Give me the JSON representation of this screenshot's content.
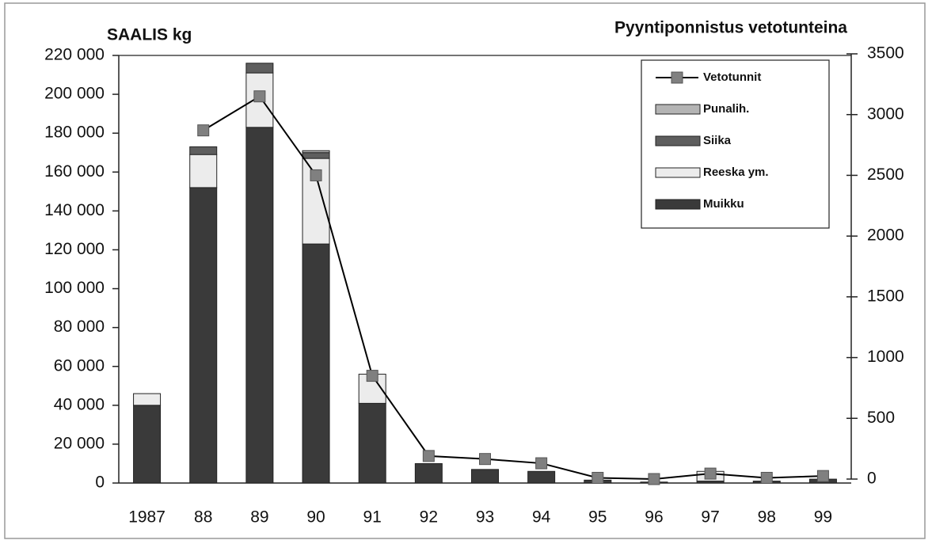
{
  "chart_data": {
    "type": "bar",
    "y_label": "SAALIS kg",
    "y2_label": "Pyyntiponnistus vetotunteina",
    "categories": [
      "1987",
      "88",
      "89",
      "90",
      "91",
      "92",
      "93",
      "94",
      "95",
      "96",
      "97",
      "98",
      "99"
    ],
    "stacked": true,
    "series": [
      {
        "name": "Muikku",
        "color": "#3a3a3a",
        "values": [
          40000,
          152000,
          183000,
          123000,
          41000,
          10000,
          7000,
          6000,
          1500,
          500,
          1000,
          1000,
          2000
        ]
      },
      {
        "name": "Reeska ym.",
        "color": "#ececec",
        "values": [
          6000,
          17000,
          28000,
          44000,
          15000,
          0,
          0,
          0,
          0,
          0,
          5000,
          0,
          0
        ]
      },
      {
        "name": "Siika",
        "color": "#5e5e5e",
        "values": [
          0,
          4000,
          5000,
          3000,
          0,
          0,
          0,
          0,
          0,
          0,
          0,
          0,
          0
        ]
      },
      {
        "name": "Punalih.",
        "color": "#b4b4b4",
        "values": [
          0,
          0,
          0,
          1000,
          0,
          0,
          0,
          0,
          0,
          0,
          0,
          0,
          0
        ]
      },
      {
        "name": "Vetotunnit",
        "type": "line",
        "axis": "y2",
        "color": "#000000",
        "marker_color": "#808080",
        "values": [
          null,
          2870,
          3150,
          2500,
          850,
          190,
          165,
          130,
          10,
          0,
          45,
          10,
          25
        ]
      }
    ],
    "ylim": [
      0,
      220000
    ],
    "yticks": [
      0,
      {
        "value": 20000,
        "label": "20 000"
      },
      {
        "value": 40000,
        "label": "40 000"
      },
      {
        "value": 60000,
        "label": "60 000"
      },
      {
        "value": 80000,
        "label": "80 000"
      },
      {
        "value": 100000,
        "label": "100 000"
      },
      {
        "value": 120000,
        "label": "120 000"
      },
      {
        "value": 140000,
        "label": "140 000"
      },
      {
        "value": 160000,
        "label": "160 000"
      },
      {
        "value": 180000,
        "label": "180 000"
      },
      {
        "value": 200000,
        "label": "200 000"
      },
      {
        "value": 220000,
        "label": "220 000"
      }
    ],
    "y2lim": [
      0,
      3500
    ],
    "y2ticks": [
      0,
      500,
      1000,
      1500,
      2000,
      2500,
      3000,
      3500
    ],
    "grid": false,
    "legend": "upper right"
  }
}
